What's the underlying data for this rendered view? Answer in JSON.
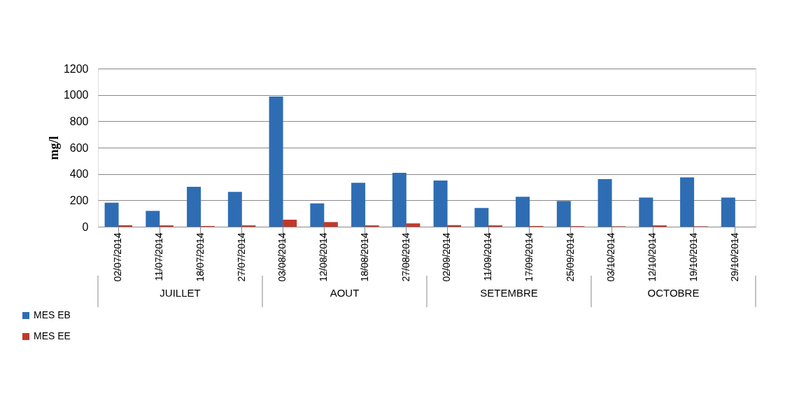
{
  "chart_data": {
    "type": "bar",
    "ylabel": "mg/l",
    "categories": [
      "02/07/2014",
      "11/07/2014",
      "18/07/2014",
      "27/07/2014",
      "03/08/2014",
      "12/08/2014",
      "18/08/2014",
      "27/08/2014",
      "02/09/2014",
      "11/09/2014",
      "17/09/2014",
      "25/09/2014",
      "03/10/2014",
      "12/10/2014",
      "19/10/2014",
      "29/10/2014"
    ],
    "series": [
      {
        "name": "MES EB",
        "color": "#2e6db4",
        "values": [
          182,
          120,
          303,
          264,
          988,
          177,
          333,
          409,
          350,
          142,
          227,
          195,
          361,
          221,
          375,
          221
        ]
      },
      {
        "name": "MES EE",
        "color": "#c0392b",
        "values": [
          10,
          10,
          5,
          10,
          53,
          35,
          10,
          25,
          12,
          10,
          5,
          4,
          3,
          10,
          3,
          null
        ]
      }
    ],
    "annotations": [
      "JUILLET",
      "AOUT",
      "SETEMBRE",
      "OCTOBRE"
    ],
    "ylim": [
      0,
      1200
    ],
    "yticks": [
      0,
      200,
      400,
      600,
      800,
      1000,
      1200
    ],
    "grid": "y",
    "legend": "bottom left"
  }
}
